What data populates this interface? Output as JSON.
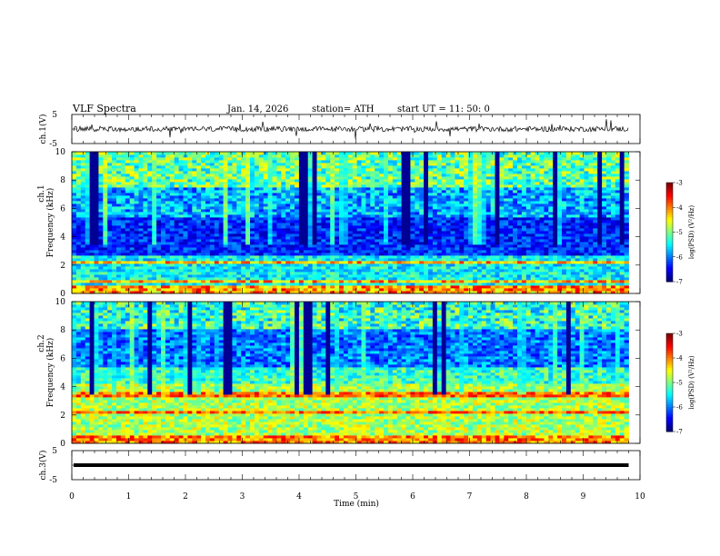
{
  "header": {
    "title": "VLF  Spectra",
    "date": "Jan. 14, 2026",
    "station": "station= ATH",
    "start_ut": "start  UT  =   11: 50: 0"
  },
  "chart_data": {
    "type": "heatmap",
    "title": "VLF  Spectra",
    "xlabel": "Time  (min)",
    "xlim": [
      0,
      10
    ],
    "x_ticks": [
      "0",
      "1",
      "2",
      "3",
      "4",
      "5",
      "6",
      "7",
      "8",
      "9",
      "10"
    ],
    "data_end_min": 9.8,
    "panels": [
      {
        "name": "ch1-waveform",
        "type": "line",
        "ylabel": "ch.1(V)",
        "ylim": [
          -5,
          5
        ],
        "y_ticks": [
          "5",
          "-5"
        ],
        "baseline": 0
      },
      {
        "name": "ch1-spectrogram",
        "type": "heatmap",
        "ylabel_top": "ch.1",
        "ylabel": "Frequency  (kHz)",
        "ylim": [
          0,
          10
        ],
        "y_ticks": [
          "0",
          "2",
          "4",
          "6",
          "8",
          "10"
        ],
        "colorbar": {
          "label": "log(PSD) (V²/Hz)",
          "range": [
            -7,
            -3
          ],
          "ticks": [
            "-3",
            "-4",
            "-5",
            "-6",
            "-7"
          ]
        }
      },
      {
        "name": "ch2-spectrogram",
        "type": "heatmap",
        "ylabel_top": "ch.2",
        "ylabel": "Frequency  (kHz)",
        "ylim": [
          0,
          10
        ],
        "y_ticks": [
          "0",
          "2",
          "4",
          "6",
          "8",
          "10"
        ],
        "colorbar": {
          "label": "log(PSD) (V²/Hz)",
          "range": [
            -7,
            -3
          ],
          "ticks": [
            "-3",
            "-4",
            "-5",
            "-6",
            "-7"
          ]
        }
      },
      {
        "name": "ch3-waveform",
        "type": "line",
        "ylabel": "ch.3(V)",
        "ylim": [
          -5,
          5
        ],
        "y_ticks": [
          "5",
          "-5"
        ],
        "baseline": 0
      }
    ]
  }
}
